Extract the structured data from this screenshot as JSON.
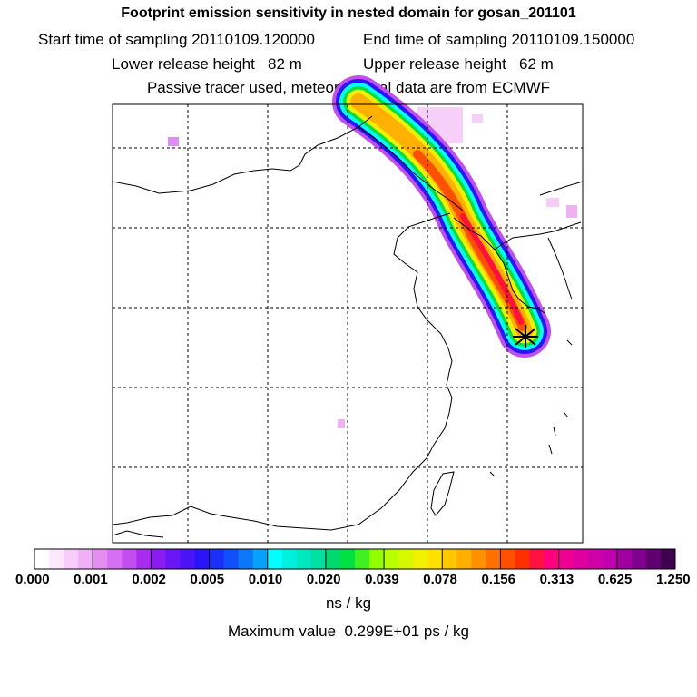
{
  "header": {
    "title": "Footprint emission sensitivity in nested domain for gosan_201101",
    "start_time_label": "Start time of sampling 20110109.120000",
    "end_time_label": "End time of sampling 20110109.150000",
    "lower_height_label": "Lower release height   82 m",
    "upper_height_label": "Upper release height   62 m",
    "tracer_label": "Passive tracer used, meteorological data are from ECMWF"
  },
  "colorbar": {
    "tick_labels": [
      "0.000",
      "0.001",
      "0.002",
      "0.005",
      "0.010",
      "0.020",
      "0.039",
      "0.078",
      "0.156",
      "0.313",
      "0.625",
      "1.250"
    ],
    "colors": [
      "#ffffff",
      "#fde7fd",
      "#f8ccf8",
      "#f1b0f6",
      "#e48ef4",
      "#d570f2",
      "#c24ef0",
      "#a92bf0",
      "#8a1cf2",
      "#6a16f4",
      "#4a14f6",
      "#2a14f8",
      "#1a30f8",
      "#1050f8",
      "#0a78f8",
      "#08a0f8",
      "#00ffff",
      "#00f0e0",
      "#00e8c0",
      "#00e0a0",
      "#00d870",
      "#00e040",
      "#40f020",
      "#90ff00",
      "#b8ff00",
      "#d8f800",
      "#f0f000",
      "#ffe000",
      "#ffc800",
      "#ffb000",
      "#ff9000",
      "#ff7000",
      "#ff5000",
      "#ff3000",
      "#ff1040",
      "#ff0080",
      "#f00090",
      "#e000a0",
      "#d000a8",
      "#c000b0",
      "#a000a0",
      "#800090",
      "#600070",
      "#400050"
    ],
    "unit": "ns / kg"
  },
  "maximum_label": "Maximum value  0.299E+01 ps / kg"
}
